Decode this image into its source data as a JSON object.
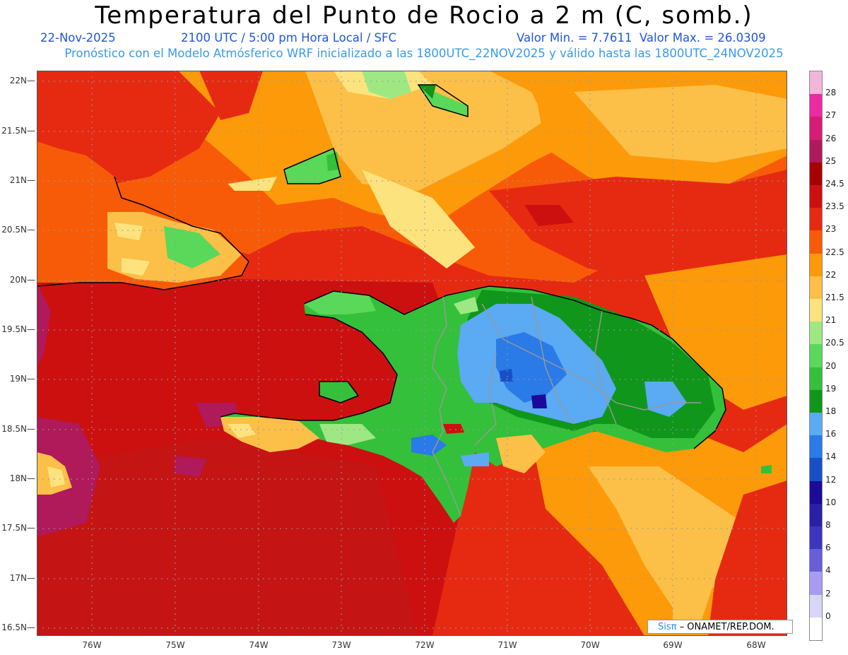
{
  "title": "Temperatura del Punto de Rocio a 2 m (C, somb.)",
  "header": {
    "date": "22-Nov-2025",
    "time": "2100 UTC / 5:00 pm Hora Local / SFC",
    "minmax": "Valor Min. = 7.7611  Valor Max. = 26.0309",
    "model_info": "Pronóstico con el Modelo Atmósferico WRF inicializado a las 1800UTC_22NOV2025 y válido hasta las  1800UTC_24NOV2025"
  },
  "axes": {
    "lat_labels": [
      "22N",
      "21.5N",
      "21N",
      "20.5N",
      "20N",
      "19.5N",
      "19N",
      "18.5N",
      "18N",
      "17.5N",
      "17N",
      "16.5N"
    ],
    "lon_labels": [
      "76W",
      "75W",
      "74W",
      "73W",
      "72W",
      "71W",
      "70W",
      "69W",
      "68W"
    ]
  },
  "colorbar": {
    "labels": [
      "28",
      "27",
      "26",
      "25",
      "24.5",
      "23.5",
      "23",
      "22.5",
      "22",
      "21.5",
      "21",
      "20.5",
      "20",
      "19",
      "18",
      "16",
      "14",
      "12",
      "10",
      "8",
      "6",
      "4",
      "2",
      "0"
    ],
    "colors": [
      "#f2b6da",
      "#ee2aa0",
      "#d61c76",
      "#b0195a",
      "#a80000",
      "#cc1010",
      "#e62a12",
      "#f85b08",
      "#fc9a0a",
      "#fcbf48",
      "#fde37e",
      "#9ee884",
      "#5ad85a",
      "#34c03a",
      "#10961a",
      "#5aaaf4",
      "#2a7ae8",
      "#1650c8",
      "#1c0a9a",
      "#2a20a8",
      "#3a36c0",
      "#6a5ed8",
      "#a89cf0",
      "#d8d6f8",
      "#ffffff"
    ]
  },
  "credit": {
    "sis": "Sisπ",
    "rest": "– ONAMET/REP.DOM."
  }
}
